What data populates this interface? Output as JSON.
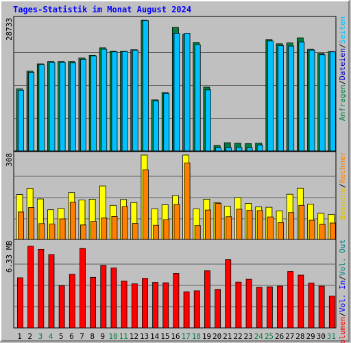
{
  "chart_data": {
    "type": "bar",
    "title": "Tages-Statistik im Monat August 2024",
    "days": [
      "1",
      "2",
      "3",
      "4",
      "5",
      "6",
      "7",
      "8",
      "9",
      "10",
      "11",
      "12",
      "13",
      "14",
      "15",
      "16",
      "17",
      "18",
      "19",
      "20",
      "21",
      "22",
      "23",
      "24",
      "25",
      "26",
      "27",
      "28",
      "29",
      "30",
      "31"
    ],
    "weekend_days": [
      "3",
      "4",
      "10",
      "11",
      "17",
      "18",
      "24",
      "25",
      "31"
    ],
    "top": {
      "ymax_label": "28733",
      "ymax": 28733,
      "series": [
        {
          "name": "Anfragen",
          "color": "#008040",
          "values": [
            13600,
            17500,
            19100,
            19600,
            19600,
            19600,
            20400,
            21000,
            22600,
            21900,
            21900,
            22200,
            28700,
            11200,
            12800,
            27100,
            25600,
            23800,
            14000,
            1200,
            1800,
            1700,
            1600,
            1700,
            24400,
            23500,
            23700,
            24800,
            22300,
            21400,
            21800
          ]
        },
        {
          "name": "Dateien",
          "color": "#00c0ff",
          "values": [
            13300,
            17200,
            18900,
            19400,
            19400,
            19300,
            20100,
            20800,
            22300,
            21700,
            21800,
            22100,
            28600,
            11000,
            12600,
            25800,
            25800,
            23300,
            13400,
            700,
            700,
            800,
            700,
            1300,
            24100,
            23100,
            23000,
            23900,
            22100,
            21100,
            21700
          ]
        },
        {
          "name": "Seiten",
          "color": "#00ffff",
          "values": []
        }
      ],
      "legend": [
        "Anfragen",
        "/",
        "Dateien",
        "/",
        "Seiten"
      ]
    },
    "middle": {
      "ymax_label": "308",
      "ymax": 308,
      "series": [
        {
          "name": "Besuche",
          "color": "#ffff00",
          "values": [
            165,
            187,
            149,
            110,
            115,
            172,
            145,
            148,
            196,
            126,
            147,
            136,
            308,
            113,
            128,
            161,
            308,
            113,
            148,
            136,
            123,
            154,
            133,
            120,
            119,
            106,
            166,
            188,
            130,
            97,
            93
          ]
        },
        {
          "name": "Rechner",
          "color": "#ff8000",
          "values": [
            102,
            118,
            60,
            58,
            77,
            137,
            55,
            68,
            80,
            86,
            121,
            61,
            254,
            54,
            74,
            129,
            279,
            53,
            109,
            133,
            85,
            112,
            108,
            107,
            84,
            63,
            100,
            126,
            72,
            57,
            62
          ]
        }
      ],
      "legend": [
        "Besuche",
        "/",
        "Rechner"
      ]
    },
    "bottom": {
      "ymax_label": "6.33 MB",
      "ymax": 6.33,
      "series": [
        {
          "name": "Volumen",
          "color": "#ff0000",
          "values": [
            3.73,
            6.08,
            5.85,
            5.46,
            3.14,
            3.99,
            5.91,
            3.76,
            4.66,
            4.46,
            3.48,
            3.28,
            3.69,
            3.39,
            3.36,
            4.06,
            2.69,
            2.76,
            4.25,
            2.87,
            5.08,
            3.41,
            3.62,
            3.03,
            3.06,
            3.11,
            4.21,
            3.93,
            3.34,
            3.11,
            2.37
          ]
        }
      ],
      "legend": [
        "Volumen",
        "/",
        "Vol. In",
        "/",
        "Vol. Out"
      ]
    }
  }
}
